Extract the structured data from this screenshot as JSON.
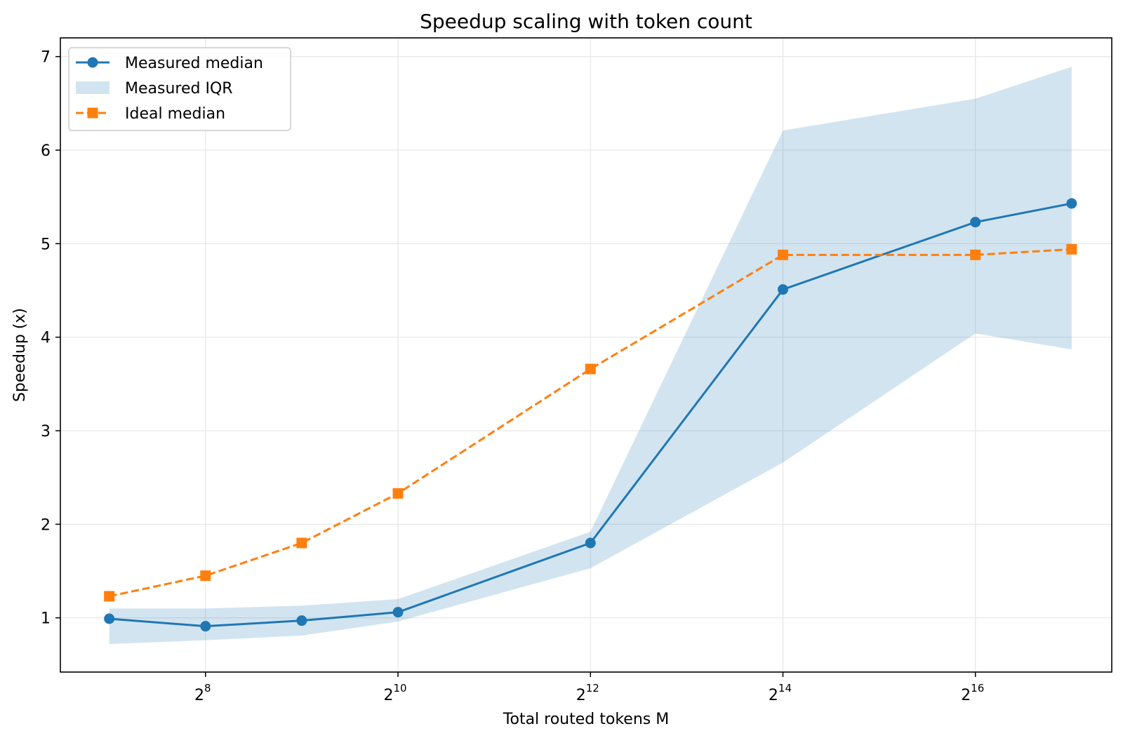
{
  "chart_data": {
    "type": "line",
    "title": "Speedup scaling with token count",
    "xlabel": "Total routed tokens M",
    "ylabel": "Speedup (x)",
    "x_scale": "log2",
    "x": [
      128,
      256,
      512,
      1024,
      4096,
      16384,
      65536,
      131072
    ],
    "xlim": [
      90,
      175000
    ],
    "ylim": [
      0.42,
      7.2
    ],
    "x_ticks": [
      {
        "value": 256,
        "base": "2",
        "exp": "8"
      },
      {
        "value": 1024,
        "base": "2",
        "exp": "10"
      },
      {
        "value": 4096,
        "base": "2",
        "exp": "12"
      },
      {
        "value": 16384,
        "base": "2",
        "exp": "14"
      },
      {
        "value": 65536,
        "base": "2",
        "exp": "16"
      }
    ],
    "y_ticks": [
      {
        "value": 1,
        "label": "1"
      },
      {
        "value": 2,
        "label": "2"
      },
      {
        "value": 3,
        "label": "3"
      },
      {
        "value": 4,
        "label": "4"
      },
      {
        "value": 5,
        "label": "5"
      },
      {
        "value": 6,
        "label": "6"
      },
      {
        "value": 7,
        "label": "7"
      }
    ],
    "grid": true,
    "legend_position": "top-left",
    "series": [
      {
        "name": "Measured median",
        "kind": "line",
        "marker": "circle",
        "color": "#1f77b4",
        "values": [
          0.99,
          0.91,
          0.97,
          1.06,
          1.8,
          4.51,
          5.23,
          5.43
        ]
      },
      {
        "name": "Measured IQR",
        "kind": "band",
        "color": "#1f77b4",
        "lower": [
          0.72,
          0.76,
          0.81,
          0.96,
          1.53,
          2.66,
          4.04,
          3.87
        ],
        "upper": [
          1.1,
          1.1,
          1.13,
          1.2,
          1.92,
          6.21,
          6.55,
          6.89
        ]
      },
      {
        "name": "Ideal median",
        "kind": "line",
        "marker": "square",
        "dash": true,
        "color": "#ff7f0e",
        "values": [
          1.23,
          1.45,
          1.8,
          2.33,
          3.66,
          4.88,
          4.88,
          4.94
        ]
      }
    ]
  }
}
